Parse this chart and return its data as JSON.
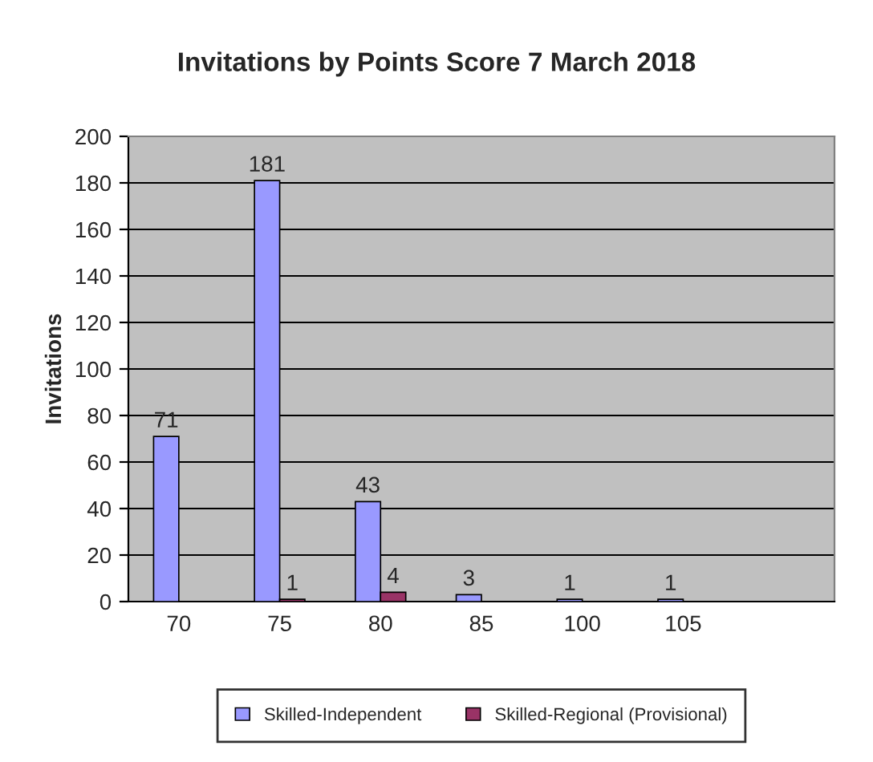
{
  "chart_data": {
    "type": "bar",
    "title": "Invitations by Points Score 7 March 2018",
    "ylabel": "Invitations",
    "categories": [
      "70",
      "75",
      "80",
      "85",
      "100",
      "105",
      null
    ],
    "series": [
      {
        "name": "Skilled-Independent",
        "color": "#9999ff",
        "values": [
          71,
          181,
          43,
          3,
          1,
          1,
          null
        ]
      },
      {
        "name": "Skilled-Regional (Provisional)",
        "color": "#993366",
        "values": [
          null,
          1,
          4,
          null,
          null,
          null,
          null
        ]
      }
    ],
    "ylim": [
      0,
      200
    ],
    "yticks": [
      0,
      20,
      40,
      60,
      80,
      100,
      120,
      140,
      160,
      180,
      200
    ],
    "grid": "y",
    "legend": "bottom",
    "data_labels": true
  }
}
